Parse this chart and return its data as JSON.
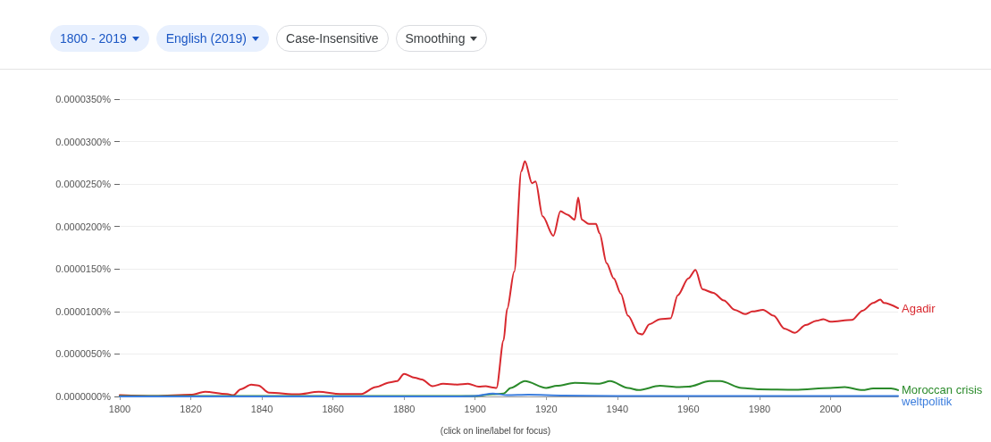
{
  "chart_data": {
    "type": "line",
    "legend": false,
    "grid": "y",
    "marker": "none",
    "line_style": "solid",
    "annotations": [
      "1800 - 2019",
      "English (2019)",
      "Case-Insensitive",
      "Smoothing",
      "(click on line/label for focus)"
    ],
    "xlim": [
      1800,
      2019
    ],
    "xticks": [
      1800,
      1820,
      1840,
      1860,
      1880,
      1900,
      1920,
      1940,
      1960,
      1980,
      2000
    ],
    "ylim": [
      0,
      3.5e-05
    ],
    "yticks": [
      {
        "value": 0,
        "label": "0.0000000%"
      },
      {
        "value": 5e-06,
        "label": "0.0000050%"
      },
      {
        "value": 1e-05,
        "label": "0.0000100%"
      },
      {
        "value": 1.5e-05,
        "label": "0.0000150%"
      },
      {
        "value": 2e-05,
        "label": "0.0000200%"
      },
      {
        "value": 2.5e-05,
        "label": "0.0000250%"
      },
      {
        "value": 3e-05,
        "label": "0.0000300%"
      },
      {
        "value": 3.5e-05,
        "label": "0.0000350%"
      }
    ],
    "series": [
      {
        "name": "Agadir",
        "color": "#d8282e",
        "x": [
          1800,
          1810,
          1820,
          1824,
          1830,
          1832,
          1834,
          1837,
          1839,
          1842,
          1850,
          1856,
          1862,
          1868,
          1872,
          1876,
          1878,
          1880,
          1883,
          1885,
          1888,
          1891,
          1895,
          1898,
          1901,
          1903,
          1905,
          1906,
          1908,
          1909,
          1911,
          1913,
          1914,
          1916,
          1917,
          1919,
          1922,
          1924,
          1926,
          1928,
          1929,
          1930,
          1932,
          1934,
          1935,
          1937,
          1939,
          1941,
          1943,
          1946,
          1947,
          1949,
          1952,
          1955,
          1957,
          1960,
          1962,
          1964,
          1967,
          1970,
          1973,
          1976,
          1978,
          1981,
          1984,
          1987,
          1990,
          1993,
          1996,
          1998,
          2000,
          2006,
          2009,
          2012,
          2014,
          2015,
          2019
        ],
        "values": [
          1.5e-07,
          5e-08,
          2e-07,
          5.5e-07,
          3e-07,
          1.5e-07,
          8.5e-07,
          1.4e-06,
          1.3e-06,
          4.5e-07,
          2.5e-07,
          5.5e-07,
          3e-07,
          3e-07,
          1.1e-06,
          1.65e-06,
          1.8e-06,
          2.65e-06,
          2.2e-06,
          2e-06,
          1.2e-06,
          1.5e-06,
          1.4e-06,
          1.5e-06,
          1.15e-06,
          1.2e-06,
          1.05e-06,
          1e-06,
          6.6e-06,
          1.03e-05,
          1.47e-05,
          2.65e-05,
          2.77e-05,
          2.51e-05,
          2.53e-05,
          2.12e-05,
          1.89e-05,
          2.18e-05,
          2.14e-05,
          2.08e-05,
          2.34e-05,
          2.08e-05,
          2.03e-05,
          2.03e-05,
          1.92e-05,
          1.57e-05,
          1.39e-05,
          1.21e-05,
          9.5e-06,
          7.4e-06,
          7.3e-06,
          8.5e-06,
          9.1e-06,
          9.2e-06,
          1.19e-05,
          1.39e-05,
          1.49e-05,
          1.26e-05,
          1.22e-05,
          1.13e-05,
          1.02e-05,
          9.7e-06,
          1e-05,
          1.02e-05,
          9.5e-06,
          8e-06,
          7.5e-06,
          8.4e-06,
          8.9e-06,
          9.1e-06,
          8.8e-06,
          9e-06,
          1.01e-05,
          1.1e-05,
          1.14e-05,
          1.1e-05,
          1.04e-05
        ]
      },
      {
        "name": "Moroccan crisis",
        "color": "#2a8a2a",
        "x": [
          1800,
          1850,
          1900,
          1905,
          1908,
          1910,
          1914,
          1920,
          1923,
          1928,
          1935,
          1938,
          1943,
          1946,
          1952,
          1957,
          1960,
          1966,
          1969,
          1975,
          1980,
          1990,
          2000,
          2004,
          2009,
          2012,
          2017,
          2019
        ],
        "values": [
          5e-08,
          5e-08,
          5e-08,
          2.5e-07,
          3.5e-07,
          1e-06,
          1.8e-06,
          1e-06,
          1.25e-06,
          1.6e-06,
          1.5e-06,
          1.8e-06,
          1e-06,
          7.5e-07,
          1.25e-06,
          1.1e-06,
          1.15e-06,
          1.8e-06,
          1.8e-06,
          1e-06,
          8.5e-07,
          8e-07,
          1e-06,
          1.1e-06,
          7.5e-07,
          9.5e-07,
          9.5e-07,
          7.5e-07
        ]
      },
      {
        "name": "weltpolitik",
        "color": "#3b7ddd",
        "x": [
          1800,
          1895,
          1900,
          1905,
          1909,
          1915,
          1925,
          1940,
          2019
        ],
        "values": [
          0,
          0,
          5e-08,
          3.5e-07,
          1.5e-07,
          2e-07,
          1e-07,
          5e-08,
          5e-08
        ]
      }
    ]
  }
}
